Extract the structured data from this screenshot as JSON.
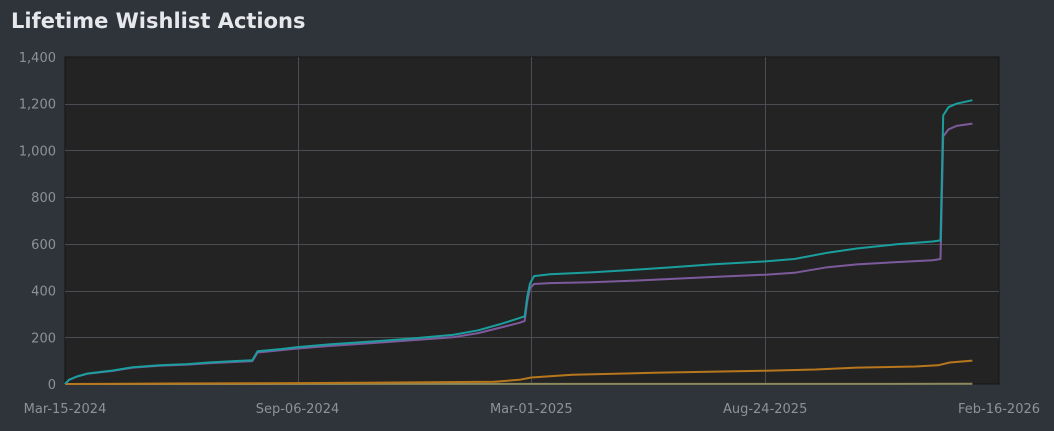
{
  "chart_data": {
    "type": "line",
    "title": "Lifetime Wishlist Actions",
    "xlabel": "",
    "ylabel": "",
    "ylim": [
      0,
      1400
    ],
    "y_ticks": [
      0,
      200,
      400,
      600,
      800,
      1000,
      1200,
      1400
    ],
    "y_tick_labels": [
      "0",
      "200",
      "400",
      "600",
      "800",
      "1,000",
      "1,200",
      "1,400"
    ],
    "x_range": [
      "2024-03-15",
      "2026-02-16"
    ],
    "x_ticks": [
      "2024-03-15",
      "2024-09-06",
      "2025-03-01",
      "2025-08-24",
      "2026-02-16"
    ],
    "x_tick_labels": [
      "Mar-15-2024",
      "Sep-06-2024",
      "Mar-01-2025",
      "Aug-24-2025",
      "Feb-16-2026"
    ],
    "grid": true,
    "colors": {
      "background": "#2f333a",
      "plot_background": "#232323",
      "grid": "#4a4d52",
      "series_teal": "#1a9e9e",
      "series_purple": "#7d5a9b",
      "series_orange": "#b8771c",
      "series_olive": "#8c8a5c"
    },
    "series": [
      {
        "color": "#1a9e9e",
        "points": [
          [
            "2024-03-15",
            0
          ],
          [
            "2024-03-18",
            18
          ],
          [
            "2024-03-24",
            32
          ],
          [
            "2024-04-01",
            45
          ],
          [
            "2024-04-20",
            58
          ],
          [
            "2024-05-05",
            72
          ],
          [
            "2024-05-25",
            80
          ],
          [
            "2024-06-15",
            85
          ],
          [
            "2024-07-01",
            92
          ],
          [
            "2024-07-20",
            98
          ],
          [
            "2024-08-03",
            102
          ],
          [
            "2024-08-07",
            140
          ],
          [
            "2024-08-25",
            150
          ],
          [
            "2024-09-06",
            158
          ],
          [
            "2024-10-01",
            170
          ],
          [
            "2024-11-01",
            182
          ],
          [
            "2024-12-01",
            195
          ],
          [
            "2025-01-01",
            210
          ],
          [
            "2025-01-20",
            230
          ],
          [
            "2025-02-05",
            255
          ],
          [
            "2025-02-20",
            282
          ],
          [
            "2025-02-24",
            290
          ],
          [
            "2025-02-26",
            375
          ],
          [
            "2025-02-28",
            430
          ],
          [
            "2025-03-03",
            462
          ],
          [
            "2025-03-15",
            470
          ],
          [
            "2025-04-15",
            478
          ],
          [
            "2025-05-15",
            488
          ],
          [
            "2025-06-15",
            500
          ],
          [
            "2025-07-15",
            512
          ],
          [
            "2025-08-24",
            525
          ],
          [
            "2025-09-15",
            535
          ],
          [
            "2025-10-10",
            562
          ],
          [
            "2025-11-01",
            580
          ],
          [
            "2025-12-01",
            598
          ],
          [
            "2025-12-28",
            610
          ],
          [
            "2026-01-03",
            615
          ],
          [
            "2026-01-05",
            1150
          ],
          [
            "2026-01-09",
            1185
          ],
          [
            "2026-01-15",
            1200
          ],
          [
            "2026-01-27",
            1215
          ]
        ]
      },
      {
        "color": "#7d5a9b",
        "points": [
          [
            "2024-03-15",
            0
          ],
          [
            "2024-03-18",
            18
          ],
          [
            "2024-03-24",
            32
          ],
          [
            "2024-04-01",
            44
          ],
          [
            "2024-04-20",
            56
          ],
          [
            "2024-05-05",
            70
          ],
          [
            "2024-05-25",
            78
          ],
          [
            "2024-06-15",
            83
          ],
          [
            "2024-07-01",
            89
          ],
          [
            "2024-07-20",
            94
          ],
          [
            "2024-08-03",
            98
          ],
          [
            "2024-08-07",
            135
          ],
          [
            "2024-08-25",
            145
          ],
          [
            "2024-09-06",
            152
          ],
          [
            "2024-10-01",
            163
          ],
          [
            "2024-11-01",
            175
          ],
          [
            "2024-12-01",
            187
          ],
          [
            "2025-01-01",
            200
          ],
          [
            "2025-01-20",
            218
          ],
          [
            "2025-02-05",
            240
          ],
          [
            "2025-02-20",
            262
          ],
          [
            "2025-02-24",
            270
          ],
          [
            "2025-02-26",
            355
          ],
          [
            "2025-02-28",
            410
          ],
          [
            "2025-03-03",
            428
          ],
          [
            "2025-03-15",
            432
          ],
          [
            "2025-04-15",
            436
          ],
          [
            "2025-05-15",
            442
          ],
          [
            "2025-06-15",
            450
          ],
          [
            "2025-07-15",
            458
          ],
          [
            "2025-08-24",
            468
          ],
          [
            "2025-09-15",
            476
          ],
          [
            "2025-10-10",
            500
          ],
          [
            "2025-11-01",
            512
          ],
          [
            "2025-12-01",
            522
          ],
          [
            "2025-12-28",
            530
          ],
          [
            "2026-01-03",
            535
          ],
          [
            "2026-01-05",
            1060
          ],
          [
            "2026-01-09",
            1090
          ],
          [
            "2026-01-15",
            1105
          ],
          [
            "2026-01-27",
            1115
          ]
        ]
      },
      {
        "color": "#b8771c",
        "points": [
          [
            "2024-03-15",
            0
          ],
          [
            "2024-06-01",
            2
          ],
          [
            "2024-09-06",
            4
          ],
          [
            "2024-12-01",
            7
          ],
          [
            "2025-02-01",
            10
          ],
          [
            "2025-02-20",
            18
          ],
          [
            "2025-03-01",
            28
          ],
          [
            "2025-04-01",
            40
          ],
          [
            "2025-06-01",
            48
          ],
          [
            "2025-08-24",
            57
          ],
          [
            "2025-10-01",
            62
          ],
          [
            "2025-11-01",
            70
          ],
          [
            "2025-12-15",
            75
          ],
          [
            "2026-01-01",
            80
          ],
          [
            "2026-01-10",
            92
          ],
          [
            "2026-01-27",
            100
          ]
        ]
      },
      {
        "color": "#8c8a5c",
        "points": [
          [
            "2024-03-15",
            0
          ],
          [
            "2026-01-27",
            1
          ]
        ]
      }
    ]
  }
}
